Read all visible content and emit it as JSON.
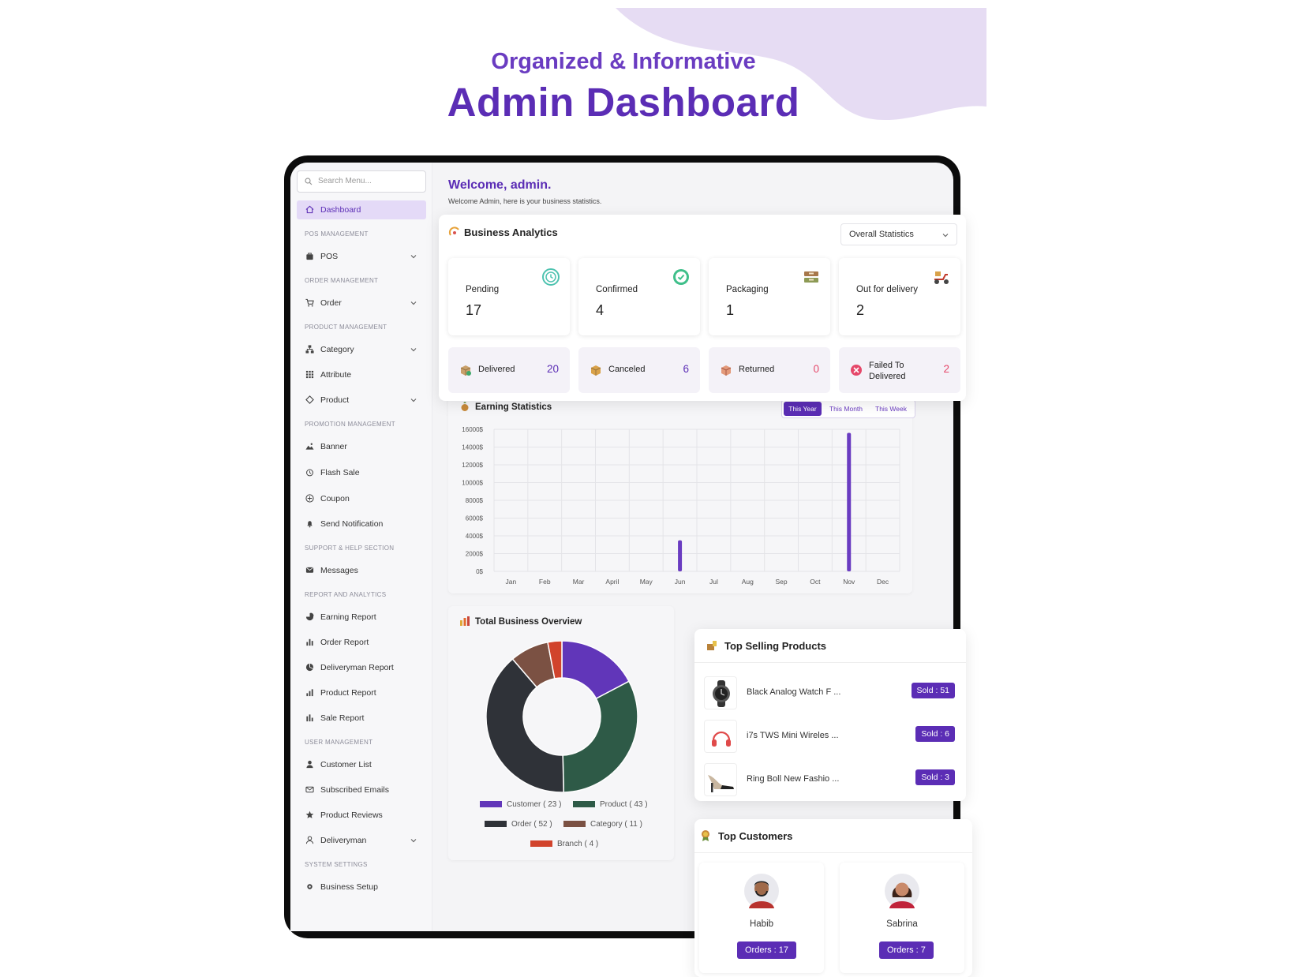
{
  "hero": {
    "subtitle": "Organized & Informative",
    "title": "Admin Dashboard"
  },
  "sidebar": {
    "search_placeholder": "Search Menu...",
    "dashboard": "Dashboard",
    "sections": {
      "pos": "POS MANAGEMENT",
      "order": "ORDER MANAGEMENT",
      "product": "PRODUCT MANAGEMENT",
      "promotion": "PROMOTION MANAGEMENT",
      "support": "SUPPORT & HELP SECTION",
      "report": "REPORT AND ANALYTICS",
      "user": "USER MANAGEMENT",
      "system": "SYSTEM SETTINGS"
    },
    "items": {
      "pos": "POS",
      "order": "Order",
      "category": "Category",
      "attribute": "Attribute",
      "product": "Product",
      "banner": "Banner",
      "flash_sale": "Flash Sale",
      "coupon": "Coupon",
      "send_notification": "Send Notification",
      "messages": "Messages",
      "earning_report": "Earning Report",
      "order_report": "Order Report",
      "deliveryman_report": "Deliveryman Report",
      "product_report": "Product Report",
      "sale_report": "Sale Report",
      "customer_list": "Customer List",
      "subscribed_emails": "Subscribed Emails",
      "product_reviews": "Product Reviews",
      "deliveryman": "Deliveryman",
      "business_setup": "Business Setup"
    }
  },
  "welcome": {
    "title": "Welcome, admin.",
    "subtitle": "Welcome Admin, here is your business statistics."
  },
  "analytics": {
    "title": "Business Analytics",
    "filter": "Overall Statistics",
    "primary": [
      {
        "label": "Pending",
        "value": "17",
        "icon": "clock-icon"
      },
      {
        "label": "Confirmed",
        "value": "4",
        "icon": "check-icon"
      },
      {
        "label": "Packaging",
        "value": "1",
        "icon": "box-icon"
      },
      {
        "label": "Out for delivery",
        "value": "2",
        "icon": "delivery-scooter-icon"
      }
    ],
    "secondary": [
      {
        "label": "Delivered",
        "value": "20",
        "color": "#5b2db5"
      },
      {
        "label": "Canceled",
        "value": "6",
        "color": "#5b2db5"
      },
      {
        "label": "Returned",
        "value": "0",
        "color": "#e5486a"
      },
      {
        "label": "Failed To Delivered",
        "label_line1": "Failed To",
        "label_line2": "Delivered",
        "value": "2",
        "color": "#e5486a"
      }
    ]
  },
  "earning": {
    "title": "Earning Statistics",
    "tabs": [
      "This Year",
      "This Month",
      "This Week"
    ],
    "active_tab": "This Year",
    "chart_data": {
      "type": "bar",
      "categories": [
        "Jan",
        "Feb",
        "Mar",
        "April",
        "May",
        "Jun",
        "Jul",
        "Aug",
        "Sep",
        "Oct",
        "Nov",
        "Dec"
      ],
      "values": [
        0,
        0,
        0,
        0,
        0,
        3500,
        0,
        0,
        0,
        0,
        15600,
        0
      ],
      "ylim": [
        0,
        16000
      ],
      "yticks": [
        "0$",
        "2000$",
        "4000$",
        "6000$",
        "8000$",
        "10000$",
        "12000$",
        "14000$",
        "16000$"
      ],
      "grid": true,
      "bar_color": "#6a3cc1"
    }
  },
  "overview": {
    "title": "Total Business Overview",
    "chart_data": {
      "type": "pie",
      "donut": true,
      "slices": [
        {
          "name": "Customer",
          "value": 23,
          "label": "Customer ( 23 )",
          "color": "#6136b9"
        },
        {
          "name": "Product",
          "value": 43,
          "label": "Product ( 43 )",
          "color": "#2e5a47"
        },
        {
          "name": "Order",
          "value": 52,
          "label": "Order ( 52 )",
          "color": "#2f3238"
        },
        {
          "name": "Category",
          "value": 11,
          "label": "Category ( 11 )",
          "color": "#7b5143"
        },
        {
          "name": "Branch",
          "value": 4,
          "label": "Branch ( 4 )",
          "color": "#d1432c"
        }
      ]
    }
  },
  "top_products": {
    "title": "Top Selling Products",
    "items": [
      {
        "name": "Black Analog Watch F ...",
        "sold": "Sold : 51"
      },
      {
        "name": "i7s TWS Mini Wireles ...",
        "sold": "Sold : 6"
      },
      {
        "name": "Ring Boll New Fashio ...",
        "sold": "Sold : 3"
      }
    ]
  },
  "top_customers": {
    "title": "Top Customers",
    "items": [
      {
        "name": "Habib",
        "orders": "Orders : 17"
      },
      {
        "name": "Sabrina",
        "orders": "Orders : 7"
      }
    ]
  }
}
